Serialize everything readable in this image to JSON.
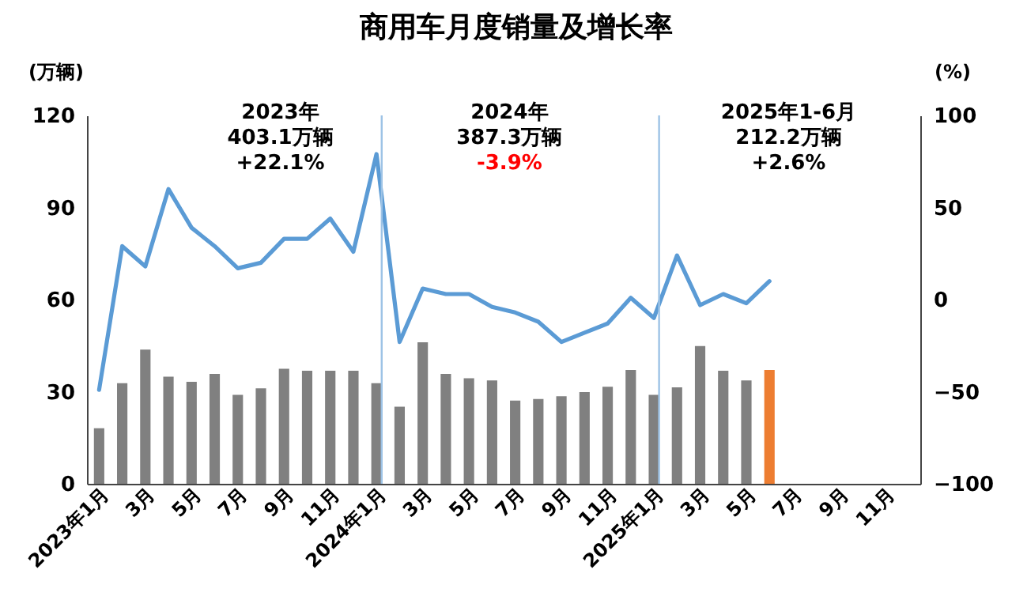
{
  "chart_data": {
    "type": "bar",
    "title": "商用车月度销量及增长率",
    "ylabel": "(万辆)",
    "y2label": "(%)",
    "categories": [
      "2023年1月",
      null,
      "3月",
      null,
      "5月",
      null,
      "7月",
      null,
      "9月",
      null,
      "11月",
      null,
      "2024年1月",
      null,
      "3月",
      null,
      "5月",
      null,
      "7月",
      null,
      "9月",
      null,
      "11月",
      null,
      "2025年1月",
      null,
      "3月",
      null,
      "5月",
      null,
      "7月",
      null,
      "9月",
      null,
      "11月",
      null
    ],
    "series": [
      {
        "colors": [
          "#808080",
          "#808080",
          "#808080",
          "#808080",
          "#808080",
          "#808080",
          "#808080",
          "#808080",
          "#808080",
          "#808080",
          "#808080",
          "#808080",
          "#808080",
          "#808080",
          "#808080",
          "#808080",
          "#808080",
          "#808080",
          "#808080",
          "#808080",
          "#808080",
          "#808080",
          "#808080",
          "#808080",
          "#808080",
          "#808080",
          "#808080",
          "#808080",
          "#808080",
          "#ed7d31",
          "#808080",
          "#808080",
          "#808080",
          "#808080",
          "#808080",
          "#808080"
        ],
        "values": [
          18.1,
          32.8,
          43.7,
          34.9,
          33.2,
          35.8,
          29,
          31.1,
          37.5,
          36.8,
          36.8,
          36.8,
          32.8,
          25.1,
          46.1,
          35.8,
          34.4,
          33.7,
          27.1,
          27.6,
          28.5,
          29.9,
          31.6,
          37.1,
          29,
          31.4,
          44.9,
          36.8,
          33.7,
          37.1,
          null,
          null,
          null,
          null,
          null,
          null
        ]
      },
      {
        "type": "line",
        "axis": "y2",
        "color": "#5b9bd5",
        "values": [
          -49,
          29,
          18,
          60,
          39,
          29,
          17,
          20,
          33,
          33,
          44,
          26,
          79,
          -23,
          6,
          3,
          3,
          -4,
          -7,
          -12,
          -23,
          -18,
          -13,
          1,
          -10,
          24,
          -3,
          3,
          -2,
          10,
          null,
          null,
          null,
          null,
          null,
          null
        ]
      }
    ],
    "ylim": [
      0,
      120
    ],
    "yticks": [
      0,
      30,
      60,
      90,
      120
    ],
    "y2lim": [
      -100,
      100
    ],
    "y2ticks": [
      -100,
      -50,
      0,
      50,
      100
    ],
    "ref_lines": [
      {
        "axis": "x",
        "value": "2024年1月",
        "color": "#9dc3e6"
      },
      {
        "axis": "x",
        "value": "2025年1月",
        "color": "#9dc3e6"
      }
    ],
    "annotations": [
      "2023年\n403.1万辆\n+22.1%",
      "2024年\n387.3万辆\n-3.9%",
      "2025年1-6月\n212.2万辆\n+2.6%"
    ],
    "grid": false
  }
}
